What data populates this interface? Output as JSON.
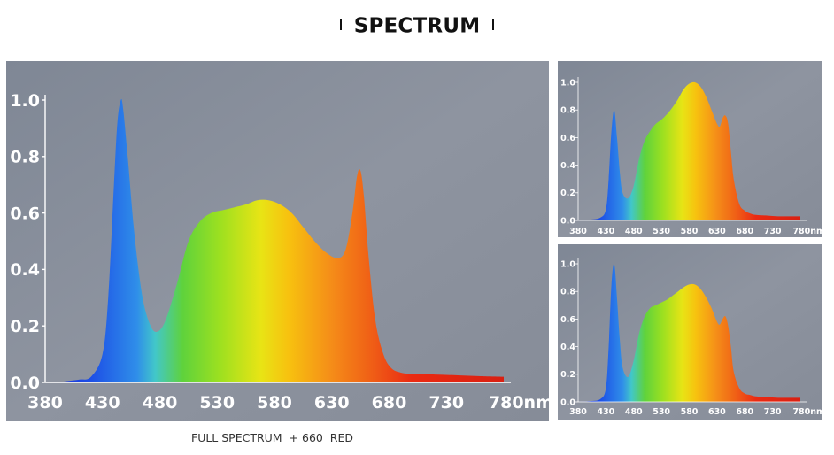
{
  "header": {
    "title": "SPECTRUM"
  },
  "caption": "FULL SPECTRUM  + 660  RED",
  "chart_data": [
    {
      "type": "area",
      "id": "main",
      "x": [
        380,
        390,
        400,
        410,
        420,
        430,
        435,
        440,
        443,
        446,
        448,
        452,
        458,
        465,
        472,
        478,
        485,
        495,
        505,
        515,
        525,
        535,
        545,
        555,
        565,
        575,
        585,
        595,
        605,
        615,
        625,
        635,
        642,
        648,
        652,
        655,
        658,
        662,
        668,
        675,
        682,
        690,
        700,
        720,
        740,
        760,
        780
      ],
      "y": [
        0.0,
        0.0,
        0.005,
        0.01,
        0.02,
        0.1,
        0.3,
        0.7,
        0.92,
        1.0,
        0.97,
        0.8,
        0.52,
        0.3,
        0.2,
        0.18,
        0.22,
        0.35,
        0.5,
        0.57,
        0.6,
        0.61,
        0.62,
        0.63,
        0.645,
        0.645,
        0.63,
        0.6,
        0.55,
        0.5,
        0.46,
        0.44,
        0.47,
        0.6,
        0.73,
        0.75,
        0.66,
        0.45,
        0.22,
        0.1,
        0.05,
        0.035,
        0.03,
        0.028,
        0.025,
        0.022,
        0.02
      ],
      "xlim": [
        380,
        780
      ],
      "ylim": [
        0,
        1.0
      ],
      "xticks": [
        "380",
        "430",
        "480",
        "530",
        "580",
        "630",
        "680",
        "730",
        "780nm"
      ],
      "yticks": [
        "0.0",
        "0.2",
        "0.4",
        "0.6",
        "0.8",
        "1.0"
      ],
      "colors": {
        "background": "#8a909c",
        "blue": "#1d4fe6",
        "green": "#6dd21a",
        "yellow": "#f5d30d",
        "red": "#ee2b14"
      }
    },
    {
      "type": "area",
      "id": "top-right",
      "x": [
        380,
        400,
        420,
        430,
        435,
        440,
        445,
        450,
        455,
        460,
        470,
        480,
        490,
        500,
        510,
        520,
        530,
        540,
        550,
        560,
        570,
        580,
        590,
        600,
        610,
        620,
        630,
        635,
        640,
        645,
        650,
        655,
        660,
        670,
        680,
        690,
        700,
        720,
        740,
        760,
        780
      ],
      "y": [
        0.0,
        0.005,
        0.02,
        0.08,
        0.3,
        0.65,
        0.8,
        0.6,
        0.35,
        0.2,
        0.16,
        0.25,
        0.45,
        0.58,
        0.65,
        0.7,
        0.73,
        0.77,
        0.82,
        0.88,
        0.95,
        0.99,
        1.0,
        0.97,
        0.9,
        0.8,
        0.7,
        0.68,
        0.74,
        0.76,
        0.7,
        0.5,
        0.3,
        0.12,
        0.07,
        0.05,
        0.04,
        0.035,
        0.03,
        0.03,
        0.03
      ],
      "xlim": [
        380,
        780
      ],
      "ylim": [
        0,
        1.0
      ],
      "xticks": [
        "380",
        "430",
        "480",
        "530",
        "580",
        "630",
        "680",
        "730",
        "780nm"
      ],
      "yticks": [
        "0.0",
        "0.2",
        "0.4",
        "0.6",
        "0.8",
        "1.0"
      ]
    },
    {
      "type": "area",
      "id": "bottom-right",
      "x": [
        380,
        400,
        420,
        430,
        435,
        440,
        445,
        450,
        455,
        460,
        470,
        480,
        490,
        500,
        510,
        520,
        530,
        540,
        550,
        560,
        570,
        580,
        590,
        600,
        610,
        620,
        630,
        635,
        640,
        645,
        650,
        655,
        660,
        670,
        680,
        690,
        700,
        720,
        740,
        760,
        780
      ],
      "y": [
        0.0,
        0.005,
        0.02,
        0.1,
        0.4,
        0.85,
        1.0,
        0.75,
        0.45,
        0.25,
        0.18,
        0.3,
        0.5,
        0.62,
        0.68,
        0.7,
        0.72,
        0.74,
        0.77,
        0.8,
        0.83,
        0.85,
        0.85,
        0.82,
        0.76,
        0.68,
        0.58,
        0.56,
        0.6,
        0.62,
        0.55,
        0.4,
        0.22,
        0.1,
        0.06,
        0.05,
        0.04,
        0.035,
        0.03,
        0.03,
        0.03
      ],
      "xlim": [
        380,
        780
      ],
      "ylim": [
        0,
        1.0
      ],
      "xticks": [
        "380",
        "430",
        "480",
        "530",
        "580",
        "630",
        "680",
        "730",
        "780nm"
      ],
      "yticks": [
        "0.0",
        "0.2",
        "0.4",
        "0.6",
        "0.8",
        "1.0"
      ]
    }
  ]
}
